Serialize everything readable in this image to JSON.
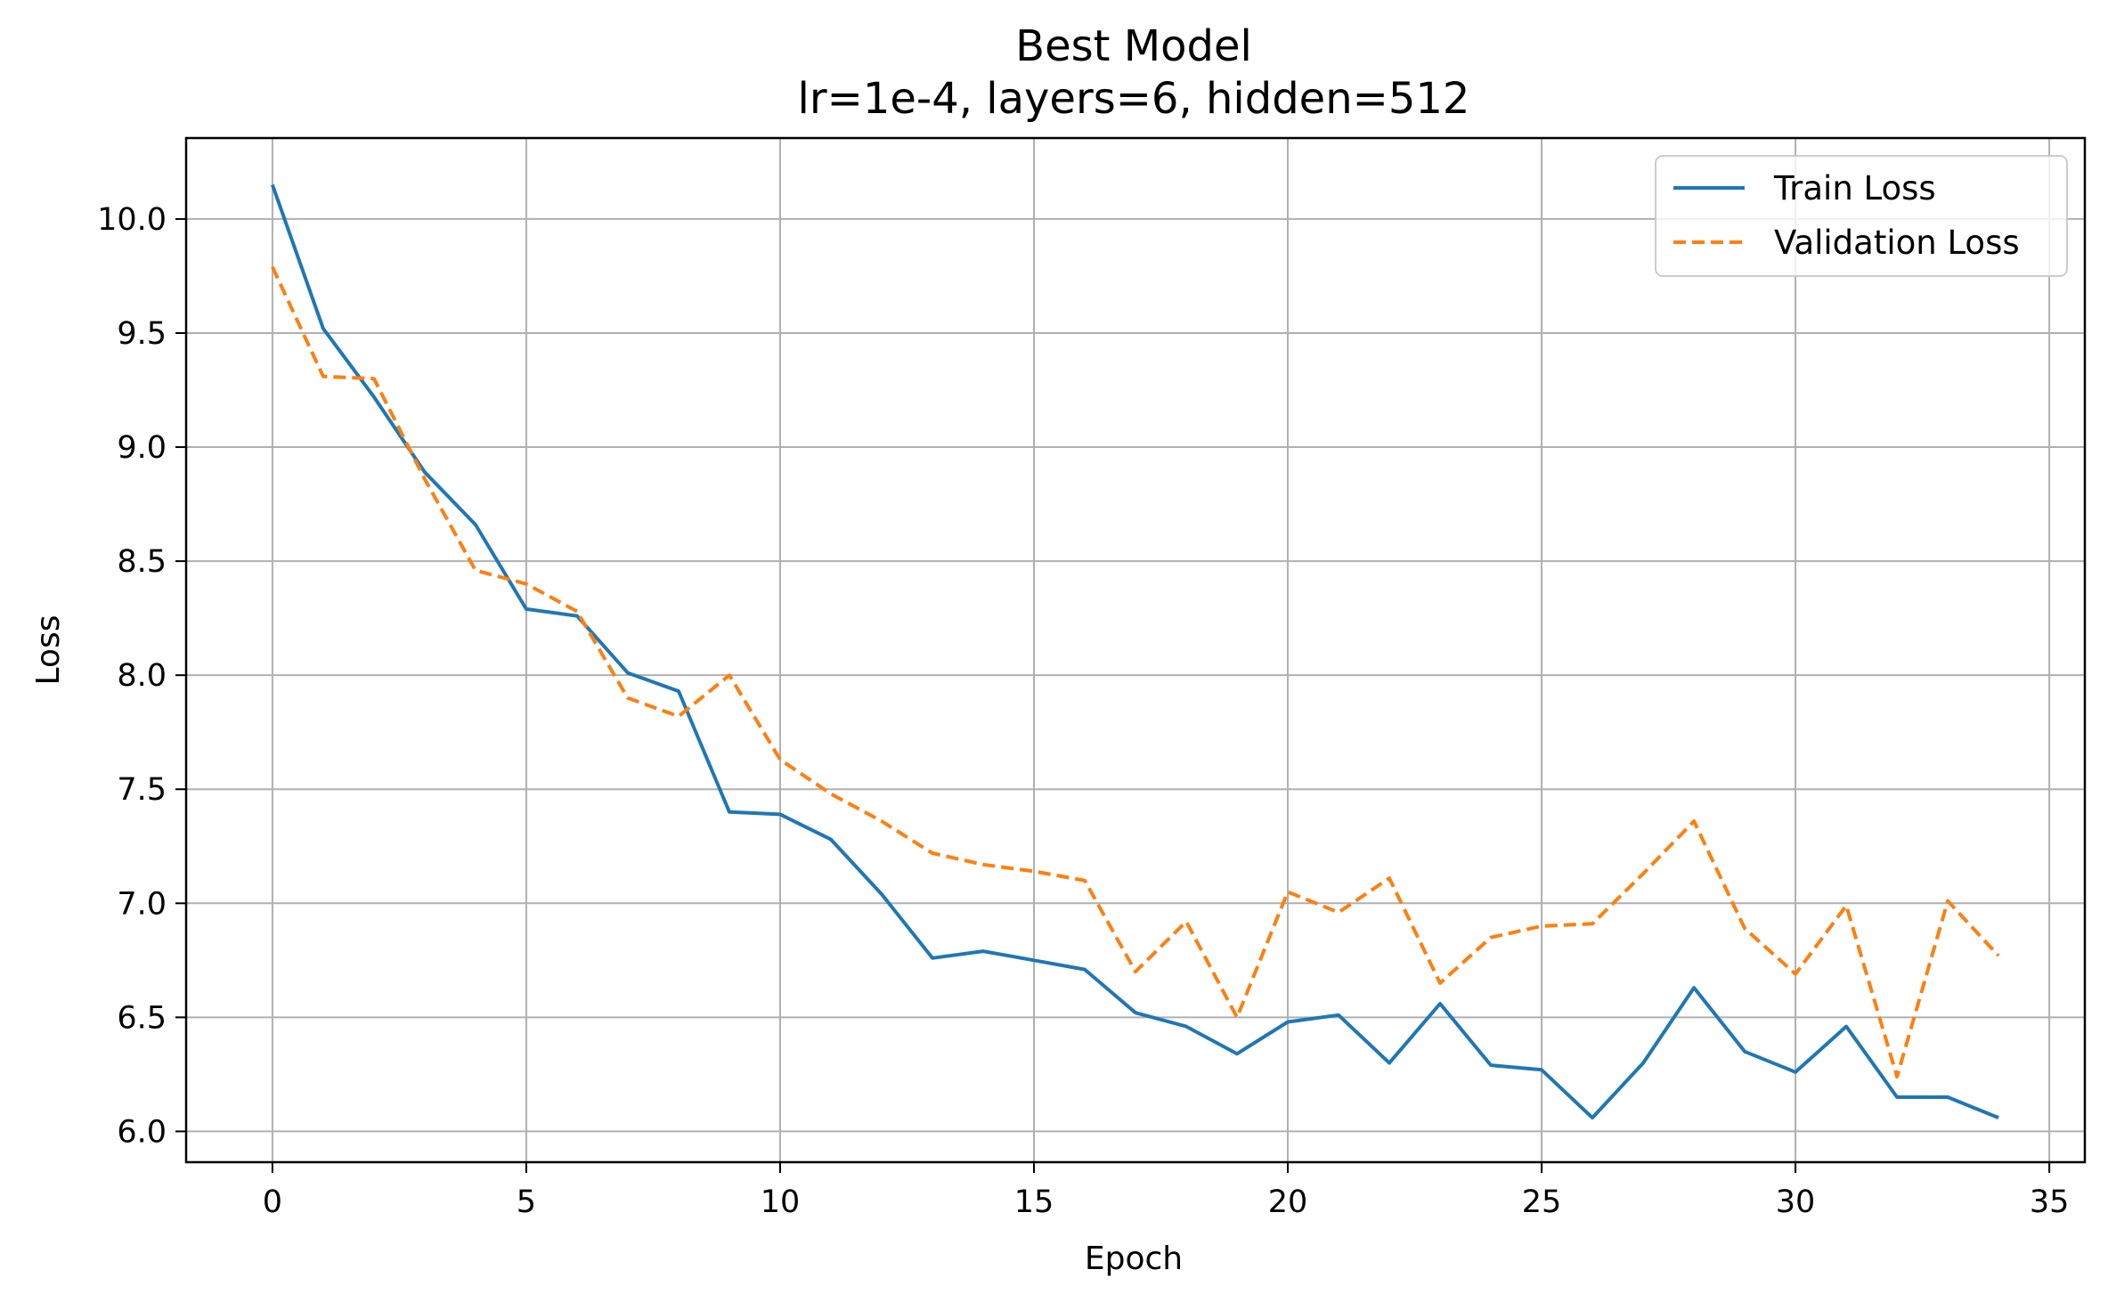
{
  "chart_data": {
    "type": "line",
    "title": "Best Model",
    "subtitle": "lr=1e-4, layers=6, hidden=512",
    "xlabel": "Epoch",
    "ylabel": "Loss",
    "xlim": [
      -1.7,
      35.7
    ],
    "ylim": [
      5.865,
      10.355
    ],
    "xticks": [
      0,
      5,
      10,
      15,
      20,
      25,
      30,
      35
    ],
    "yticks": [
      6.0,
      6.5,
      7.0,
      7.5,
      8.0,
      8.5,
      9.0,
      9.5,
      10.0
    ],
    "xtick_labels": [
      "0",
      "5",
      "10",
      "15",
      "20",
      "25",
      "30",
      "35"
    ],
    "ytick_labels": [
      "6.0",
      "6.5",
      "7.0",
      "7.5",
      "8.0",
      "8.5",
      "9.0",
      "9.5",
      "10.0"
    ],
    "grid": true,
    "legend_position": "top-right",
    "x": [
      0,
      1,
      2,
      3,
      4,
      5,
      6,
      7,
      8,
      9,
      10,
      11,
      12,
      13,
      14,
      15,
      16,
      17,
      18,
      19,
      20,
      21,
      22,
      23,
      24,
      25,
      26,
      27,
      28,
      29,
      30,
      31,
      32,
      33,
      34
    ],
    "series": [
      {
        "name": "Train Loss",
        "color": "#1f77b4",
        "style": "solid",
        "values": [
          10.15,
          9.52,
          9.22,
          8.89,
          8.66,
          8.29,
          8.26,
          8.01,
          7.93,
          7.4,
          7.39,
          7.28,
          7.04,
          6.76,
          6.79,
          6.75,
          6.71,
          6.52,
          6.46,
          6.34,
          6.48,
          6.51,
          6.3,
          6.56,
          6.29,
          6.27,
          6.06,
          6.3,
          6.63,
          6.35,
          6.26,
          6.46,
          6.15,
          6.15,
          6.06
        ]
      },
      {
        "name": "Validation Loss",
        "color": "#ff7f0e",
        "style": "dashed",
        "values": [
          9.79,
          9.31,
          9.3,
          8.86,
          8.46,
          8.4,
          8.28,
          7.9,
          7.82,
          8.0,
          7.63,
          7.48,
          7.36,
          7.22,
          7.17,
          7.14,
          7.1,
          6.7,
          6.92,
          6.5,
          7.05,
          6.96,
          7.11,
          6.65,
          6.85,
          6.9,
          6.91,
          7.13,
          7.36,
          6.89,
          6.69,
          6.99,
          6.24,
          7.01,
          6.77
        ]
      }
    ]
  }
}
